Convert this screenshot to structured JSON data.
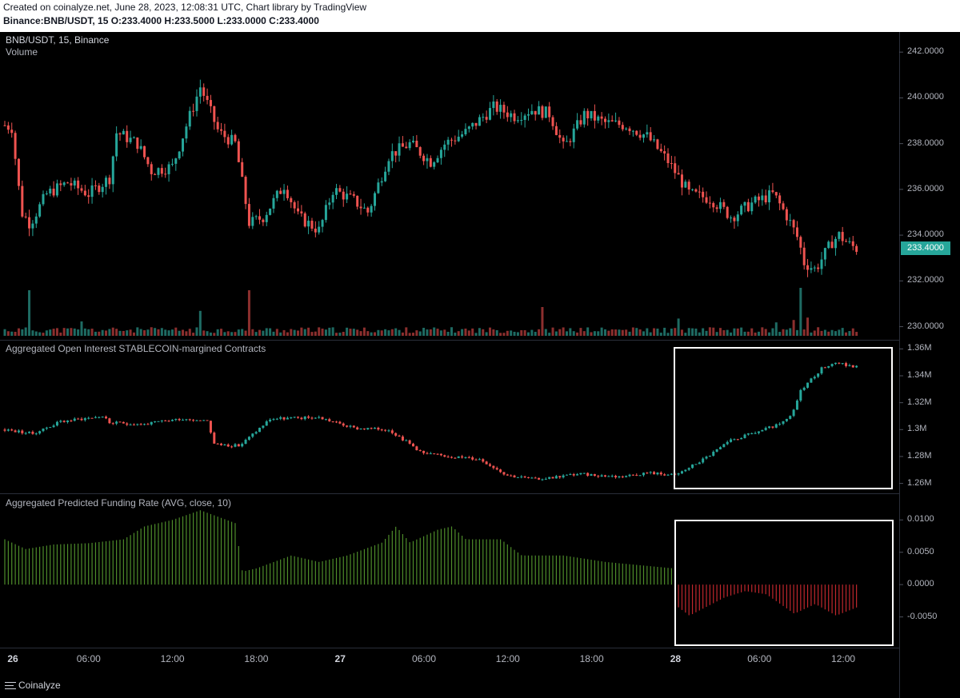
{
  "header": {
    "line1": "Created on coinalyze.net, June 28, 2023, 12:08:31 UTC, Chart library by TradingView",
    "line2": "Binance:BNB/USDT, 15 O:233.4000 H:233.5000 L:233.0000 C:233.4000"
  },
  "colors": {
    "up": "#26a69a",
    "down": "#ef5350",
    "fund_pos": "#4e8d2a",
    "fund_neg": "#c0272d",
    "highlight": "#ffffff"
  },
  "panes": {
    "price_title": "BNB/USDT, 15, Binance",
    "volume_title": "Volume",
    "oi_title": "Aggregated Open Interest STABLECOIN-margined Contracts",
    "funding_title": "Aggregated Predicted Funding Rate (AVG, close, 10)"
  },
  "last_price": "233.4000",
  "brand": "Coinalyze",
  "chart_data": [
    {
      "type": "candlestick",
      "title": "BNB/USDT, 15, Binance",
      "ylim": [
        229.6,
        242.6
      ],
      "yticks": [
        "242.0000",
        "240.0000",
        "238.0000",
        "236.0000",
        "234.0000",
        "232.0000",
        "230.0000"
      ],
      "ytick_values": [
        242,
        240,
        238,
        236,
        234,
        232,
        230
      ],
      "xticks": [
        "26",
        "06:00",
        "12:00",
        "18:00",
        "27",
        "06:00",
        "12:00",
        "18:00",
        "28",
        "06:00",
        "12:00"
      ],
      "xtick_hours": [
        0,
        6,
        12,
        18,
        24,
        30,
        36,
        42,
        48,
        54,
        60
      ],
      "xlim_hours": [
        0,
        61.2
      ],
      "key_closes": [
        {
          "h": 0,
          "v": 238.8
        },
        {
          "h": 0.5,
          "v": 238.7
        },
        {
          "h": 1.2,
          "v": 235.0
        },
        {
          "h": 1.8,
          "v": 234.5
        },
        {
          "h": 3.0,
          "v": 235.8
        },
        {
          "h": 4.5,
          "v": 236.3
        },
        {
          "h": 6.0,
          "v": 235.8
        },
        {
          "h": 7.5,
          "v": 236.5
        },
        {
          "h": 8.0,
          "v": 238.5
        },
        {
          "h": 9.5,
          "v": 238.0
        },
        {
          "h": 10.5,
          "v": 236.8
        },
        {
          "h": 12.0,
          "v": 237.0
        },
        {
          "h": 13.0,
          "v": 238.8
        },
        {
          "h": 14.0,
          "v": 240.5
        },
        {
          "h": 15.3,
          "v": 238.5
        },
        {
          "h": 16.5,
          "v": 238.0
        },
        {
          "h": 17.5,
          "v": 234.5
        },
        {
          "h": 18.5,
          "v": 234.8
        },
        {
          "h": 20.0,
          "v": 236.2
        },
        {
          "h": 21.0,
          "v": 234.8
        },
        {
          "h": 22.5,
          "v": 234.2
        },
        {
          "h": 23.5,
          "v": 236.0
        },
        {
          "h": 25.0,
          "v": 235.5
        },
        {
          "h": 26.0,
          "v": 235.0
        },
        {
          "h": 27.5,
          "v": 237.5
        },
        {
          "h": 29.0,
          "v": 238.0
        },
        {
          "h": 30.5,
          "v": 237.2
        },
        {
          "h": 31.5,
          "v": 238.0
        },
        {
          "h": 33.0,
          "v": 238.5
        },
        {
          "h": 35.0,
          "v": 239.6
        },
        {
          "h": 36.5,
          "v": 239.2
        },
        {
          "h": 37.8,
          "v": 239.5
        },
        {
          "h": 39.0,
          "v": 239.3
        },
        {
          "h": 40.0,
          "v": 237.8
        },
        {
          "h": 41.5,
          "v": 239.3
        },
        {
          "h": 43.0,
          "v": 238.9
        },
        {
          "h": 44.5,
          "v": 238.8
        },
        {
          "h": 46.0,
          "v": 238.3
        },
        {
          "h": 47.5,
          "v": 237.2
        },
        {
          "h": 49.0,
          "v": 235.8
        },
        {
          "h": 50.5,
          "v": 235.6
        },
        {
          "h": 52.0,
          "v": 234.8
        },
        {
          "h": 53.5,
          "v": 235.4
        },
        {
          "h": 55.0,
          "v": 235.8
        },
        {
          "h": 56.0,
          "v": 234.8
        },
        {
          "h": 56.8,
          "v": 233.8
        },
        {
          "h": 57.2,
          "v": 232.8
        },
        {
          "h": 58.0,
          "v": 232.5
        },
        {
          "h": 59.2,
          "v": 233.7
        },
        {
          "h": 59.7,
          "v": 234.0
        },
        {
          "h": 60.4,
          "v": 233.6
        },
        {
          "h": 61.0,
          "v": 233.4
        }
      ],
      "volume_spikes": [
        {
          "h": 1.7,
          "v": 0.95
        },
        {
          "h": 5.5,
          "v": 0.3
        },
        {
          "h": 13.9,
          "v": 0.52
        },
        {
          "h": 17.4,
          "v": 0.95
        },
        {
          "h": 38.4,
          "v": 0.6
        },
        {
          "h": 48.3,
          "v": 0.36
        },
        {
          "h": 55.3,
          "v": 0.28
        },
        {
          "h": 56.5,
          "v": 0.33
        },
        {
          "h": 56.9,
          "v": 1.0
        },
        {
          "h": 57.4,
          "v": 0.38
        }
      ]
    },
    {
      "type": "candlestick",
      "title": "Aggregated Open Interest STABLECOIN-margined Contracts",
      "ylim": [
        1.255,
        1.362
      ],
      "yticks": [
        "1.36M",
        "1.34M",
        "1.32M",
        "1.3M",
        "1.28M",
        "1.26M"
      ],
      "ytick_values": [
        1.36,
        1.34,
        1.32,
        1.3,
        1.28,
        1.26
      ],
      "unit": "M",
      "key_closes": [
        {
          "h": 0,
          "v": 1.3
        },
        {
          "h": 2.0,
          "v": 1.297
        },
        {
          "h": 4.0,
          "v": 1.306
        },
        {
          "h": 7.0,
          "v": 1.31
        },
        {
          "h": 7.5,
          "v": 1.305
        },
        {
          "h": 10.0,
          "v": 1.304
        },
        {
          "h": 12.5,
          "v": 1.308
        },
        {
          "h": 14.5,
          "v": 1.307
        },
        {
          "h": 15.0,
          "v": 1.289
        },
        {
          "h": 16.8,
          "v": 1.288
        },
        {
          "h": 19.0,
          "v": 1.308
        },
        {
          "h": 22.5,
          "v": 1.309
        },
        {
          "h": 25.0,
          "v": 1.301
        },
        {
          "h": 27.5,
          "v": 1.3
        },
        {
          "h": 30.0,
          "v": 1.282
        },
        {
          "h": 32.0,
          "v": 1.28
        },
        {
          "h": 34.0,
          "v": 1.278
        },
        {
          "h": 36.0,
          "v": 1.266
        },
        {
          "h": 38.0,
          "v": 1.263
        },
        {
          "h": 41.0,
          "v": 1.267
        },
        {
          "h": 44.0,
          "v": 1.265
        },
        {
          "h": 46.0,
          "v": 1.268
        },
        {
          "h": 48.0,
          "v": 1.266
        },
        {
          "h": 50.0,
          "v": 1.278
        },
        {
          "h": 52.0,
          "v": 1.292
        },
        {
          "h": 55.5,
          "v": 1.304
        },
        {
          "h": 56.3,
          "v": 1.31
        },
        {
          "h": 57.0,
          "v": 1.33
        },
        {
          "h": 58.5,
          "v": 1.346
        },
        {
          "h": 59.5,
          "v": 1.35
        },
        {
          "h": 60.5,
          "v": 1.347
        },
        {
          "h": 61.0,
          "v": 1.347
        }
      ],
      "highlight_box": true
    },
    {
      "type": "bar",
      "title": "Aggregated Predicted Funding Rate (AVG, close, 10)",
      "ylim": [
        -0.0095,
        0.013
      ],
      "yticks": [
        "0.0100",
        "0.0050",
        "0.0000",
        "-0.0050"
      ],
      "ytick_values": [
        0.01,
        0.005,
        0.0,
        -0.005
      ],
      "key_values": [
        {
          "h": 0,
          "v": 0.007
        },
        {
          "h": 1.5,
          "v": 0.0055
        },
        {
          "h": 3.5,
          "v": 0.0062
        },
        {
          "h": 6.0,
          "v": 0.0064
        },
        {
          "h": 8.5,
          "v": 0.007
        },
        {
          "h": 10.0,
          "v": 0.009
        },
        {
          "h": 12.0,
          "v": 0.01
        },
        {
          "h": 14.0,
          "v": 0.0115
        },
        {
          "h": 16.5,
          "v": 0.0095
        },
        {
          "h": 17.0,
          "v": 0.002
        },
        {
          "h": 18.0,
          "v": 0.0025
        },
        {
          "h": 20.5,
          "v": 0.0045
        },
        {
          "h": 22.5,
          "v": 0.0035
        },
        {
          "h": 24.5,
          "v": 0.0045
        },
        {
          "h": 27.0,
          "v": 0.0065
        },
        {
          "h": 28.0,
          "v": 0.009
        },
        {
          "h": 29.0,
          "v": 0.0065
        },
        {
          "h": 31.0,
          "v": 0.0085
        },
        {
          "h": 32.0,
          "v": 0.009
        },
        {
          "h": 33.0,
          "v": 0.007
        },
        {
          "h": 35.5,
          "v": 0.007
        },
        {
          "h": 37.0,
          "v": 0.0045
        },
        {
          "h": 40.0,
          "v": 0.0045
        },
        {
          "h": 43.0,
          "v": 0.0035
        },
        {
          "h": 47.9,
          "v": 0.0025
        },
        {
          "h": 48.2,
          "v": -0.0035
        },
        {
          "h": 49.0,
          "v": -0.0048
        },
        {
          "h": 51.5,
          "v": -0.002
        },
        {
          "h": 53.0,
          "v": -0.001
        },
        {
          "h": 54.5,
          "v": -0.0015
        },
        {
          "h": 56.5,
          "v": -0.0045
        },
        {
          "h": 58.0,
          "v": -0.003
        },
        {
          "h": 59.5,
          "v": -0.0048
        },
        {
          "h": 61.0,
          "v": -0.0035
        },
        {
          "h": 61.1,
          "v": -0.0075
        }
      ],
      "highlight_box": true
    }
  ]
}
